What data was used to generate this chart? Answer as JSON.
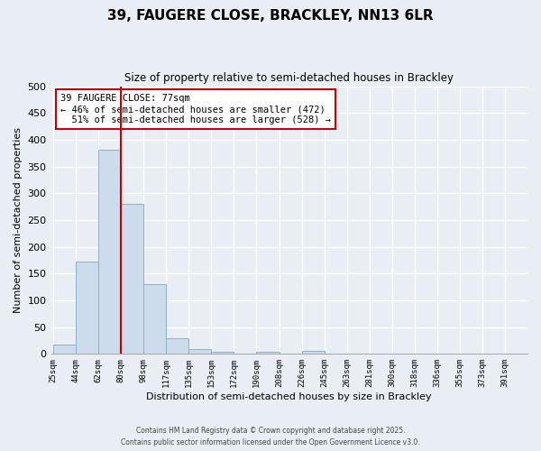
{
  "title": "39, FAUGERE CLOSE, BRACKLEY, NN13 6LR",
  "subtitle": "Size of property relative to semi-detached houses in Brackley",
  "xlabel": "Distribution of semi-detached houses by size in Brackley",
  "ylabel": "Number of semi-detached properties",
  "bar_labels": [
    "25sqm",
    "44sqm",
    "62sqm",
    "80sqm",
    "98sqm",
    "117sqm",
    "135sqm",
    "153sqm",
    "172sqm",
    "190sqm",
    "208sqm",
    "226sqm",
    "245sqm",
    "263sqm",
    "281sqm",
    "300sqm",
    "318sqm",
    "336sqm",
    "355sqm",
    "373sqm",
    "391sqm"
  ],
  "bar_values": [
    18,
    172,
    381,
    281,
    130,
    29,
    9,
    4,
    0,
    4,
    0,
    5,
    0,
    0,
    0,
    0,
    0,
    0,
    0,
    0,
    0
  ],
  "bar_color": "#cddcec",
  "bar_edge_color": "#8ab0cc",
  "property_size": "77sqm",
  "pct_smaller": 46,
  "n_smaller": 472,
  "pct_larger": 51,
  "n_larger": 528,
  "annotation_box_color": "#ffffff",
  "annotation_box_edge_color": "#cc0000",
  "vline_color": "#cc0000",
  "ylim": [
    0,
    500
  ],
  "background_color": "#e8eef4",
  "grid_color": "#ffffff",
  "footer_line1": "Contains HM Land Registry data © Crown copyright and database right 2025.",
  "footer_line2": "Contains public sector information licensed under the Open Government Licence v3.0."
}
